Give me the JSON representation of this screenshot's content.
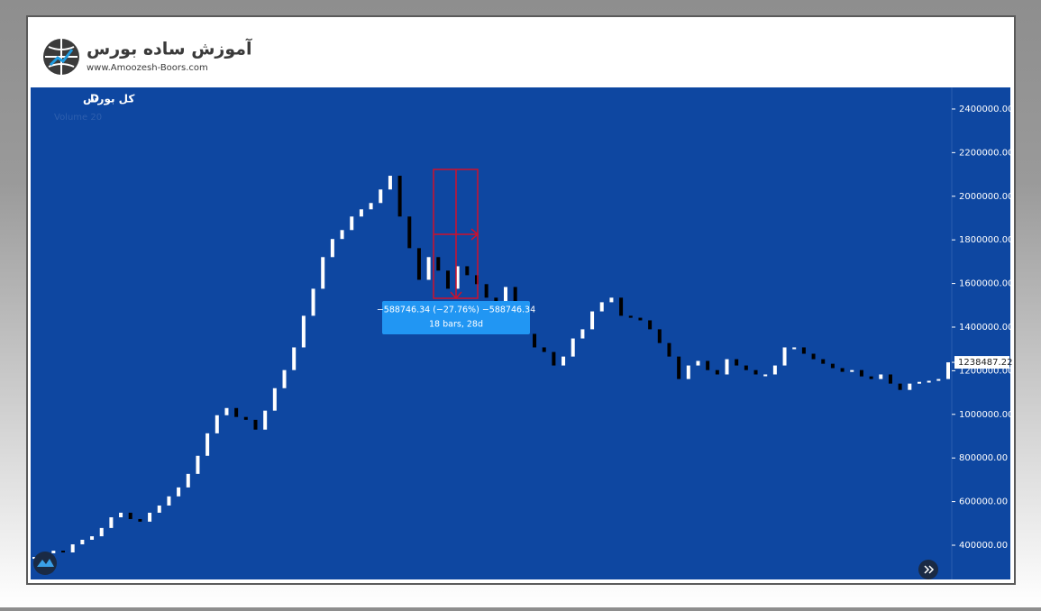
{
  "header": {
    "logo_title": "آموزش ساده بورس",
    "logo_url": "www.Amoozesh-Boors.com"
  },
  "chart_data": {
    "type": "candlestick",
    "title": "کل بورس",
    "interval": "D",
    "indicator": "Volume 20",
    "up_color": "#ffffff",
    "down_color": "#000000",
    "background": "#0e47a1",
    "close": [
      342000,
      363000,
      375000,
      367000,
      404000,
      425000,
      441000,
      479000,
      528000,
      549000,
      520000,
      508000,
      549000,
      582000,
      624000,
      665000,
      727000,
      810000,
      913000,
      996000,
      1029000,
      988000,
      975000,
      930000,
      1017000,
      1120000,
      1203000,
      1307000,
      1452000,
      1576000,
      1721000,
      1804000,
      1845000,
      1907000,
      1940000,
      1969000,
      2031000,
      2094000,
      1907000,
      1762000,
      1617000,
      1721000,
      1659000,
      1576000,
      1679000,
      1638000,
      1597000,
      1535000,
      1514000,
      1584000,
      1493000,
      1369000,
      1307000,
      1286000,
      1224000,
      1265000,
      1348000,
      1390000,
      1472000,
      1514000,
      1535000,
      1452000,
      1443000,
      1431000,
      1390000,
      1327000,
      1265000,
      1162000,
      1224000,
      1245000,
      1203000,
      1183000,
      1253000,
      1224000,
      1203000,
      1183000,
      1183000,
      1224000,
      1307000,
      1307000,
      1278000,
      1253000,
      1232000,
      1212000,
      1195000,
      1203000,
      1174000,
      1162000,
      1183000,
      1141000,
      1112000,
      1141000,
      1149000,
      1154000,
      1162000,
      1238487.22
    ],
    "ylim": [
      243000,
      2499000
    ],
    "yticks": [
      {
        "value": 400000,
        "label": "400000.00"
      },
      {
        "value": 600000,
        "label": "600000.00"
      },
      {
        "value": 800000,
        "label": "800000.00"
      },
      {
        "value": 1000000,
        "label": "1000000.00"
      },
      {
        "value": 1200000,
        "label": "1200000.00"
      },
      {
        "value": 1400000,
        "label": "1400000.00"
      },
      {
        "value": 1600000,
        "label": "1600000.00"
      },
      {
        "value": 1800000,
        "label": "1800000.00"
      },
      {
        "value": 2000000,
        "label": "2000000.00"
      },
      {
        "value": 2200000,
        "label": "2200000.00"
      },
      {
        "value": 2400000,
        "label": "2400000.00"
      }
    ],
    "last_price": 1238487.22,
    "measure": {
      "change": "−588746.34 (−27.76%) −588746.34",
      "span": "18 bars, 28d"
    }
  }
}
